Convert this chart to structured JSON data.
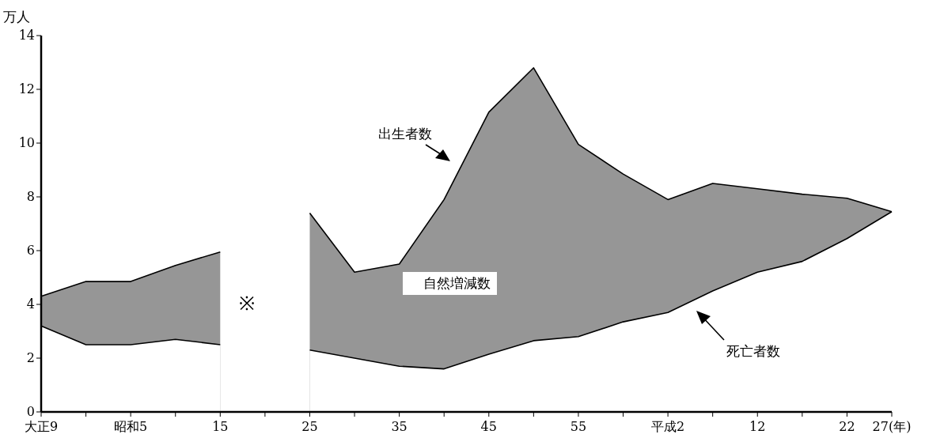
{
  "chart_data": {
    "type": "line",
    "ylabel": "万人",
    "categories": [
      "大正9",
      null,
      "昭和5",
      null,
      "15",
      null,
      "25",
      null,
      "35",
      null,
      "45",
      null,
      "55",
      null,
      "平成2",
      null,
      "12",
      null,
      "22",
      "27(年)"
    ],
    "ylim": [
      0,
      14
    ],
    "yticks": [
      0,
      2,
      4,
      6,
      8,
      10,
      12,
      14
    ],
    "grid": false,
    "legend": false,
    "marker": "none",
    "line_style": "solid",
    "annotations": [
      "※",
      "自然増減数"
    ],
    "series": [
      {
        "name": "出生者数",
        "type": "area",
        "color": "#969696",
        "values": [
          4.3,
          4.85,
          4.85,
          5.45,
          5.95,
          null,
          7.4,
          5.2,
          5.5,
          7.9,
          11.15,
          12.8,
          9.95,
          8.85,
          7.9,
          8.5,
          8.3,
          8.1,
          7.95,
          7.45
        ]
      },
      {
        "name": "死亡者数",
        "type": "area",
        "color": "#ffffff",
        "values": [
          3.2,
          2.5,
          2.5,
          2.7,
          2.5,
          null,
          2.3,
          2.0,
          1.7,
          1.6,
          2.15,
          2.65,
          2.8,
          3.35,
          3.7,
          4.5,
          5.2,
          5.6,
          6.45,
          7.45
        ]
      }
    ]
  }
}
